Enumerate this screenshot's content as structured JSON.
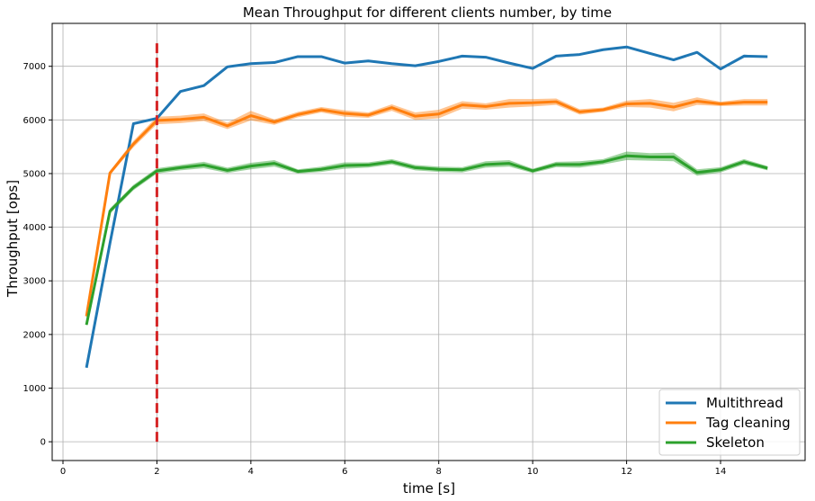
{
  "chart_data": {
    "type": "line",
    "title": "Mean Throughput for different clients number, by time",
    "xlabel": "time [s]",
    "ylabel": "Throughput [ops]",
    "xlim": [
      -0.23,
      15.8
    ],
    "ylim": [
      -350,
      7800
    ],
    "xticks": [
      0,
      2,
      4,
      6,
      8,
      10,
      12,
      14
    ],
    "yticks": [
      0,
      1000,
      2000,
      3000,
      4000,
      5000,
      6000,
      7000
    ],
    "grid": true,
    "legend_position": "bottom-right",
    "vline": {
      "x": 2,
      "color": "#d62728",
      "style": "dashed"
    },
    "x": [
      0.5,
      1.0,
      1.5,
      2.0,
      2.5,
      3.0,
      3.5,
      4.0,
      4.5,
      5.0,
      5.5,
      6.0,
      6.5,
      7.0,
      7.5,
      8.0,
      8.5,
      9.0,
      9.5,
      10.0,
      10.5,
      11.0,
      11.5,
      12.0,
      12.5,
      13.0,
      13.5,
      14.0,
      14.5,
      15.0
    ],
    "series": [
      {
        "name": "Multithread",
        "color": "#1f77b4",
        "values": [
          1380,
          3700,
          5930,
          6030,
          6530,
          6640,
          6990,
          7050,
          7070,
          7180,
          7180,
          7060,
          7100,
          7050,
          7010,
          7090,
          7190,
          7170,
          7060,
          6960,
          7190,
          7220,
          7310,
          7360,
          7240,
          7120,
          7260,
          6950,
          7190,
          7180
        ],
        "band": [
          0,
          0,
          0,
          0,
          0,
          0,
          0,
          0,
          0,
          0,
          0,
          0,
          0,
          0,
          0,
          0,
          0,
          0,
          0,
          0,
          0,
          0,
          0,
          0,
          0,
          0,
          0,
          0,
          30,
          0
        ]
      },
      {
        "name": "Tag cleaning",
        "color": "#ff7f0e",
        "values": [
          2340,
          5010,
          5550,
          5990,
          6010,
          6050,
          5890,
          6080,
          5960,
          6100,
          6190,
          6120,
          6090,
          6230,
          6070,
          6110,
          6280,
          6250,
          6310,
          6320,
          6340,
          6150,
          6190,
          6300,
          6310,
          6240,
          6350,
          6300,
          6330,
          6330
        ],
        "band": [
          40,
          40,
          60,
          70,
          70,
          70,
          60,
          90,
          50,
          50,
          50,
          60,
          50,
          60,
          70,
          80,
          70,
          60,
          80,
          70,
          60,
          50,
          40,
          60,
          80,
          80,
          70,
          40,
          60,
          60
        ]
      },
      {
        "name": "Skeleton",
        "color": "#2ca02c",
        "values": [
          2180,
          4300,
          4740,
          5050,
          5110,
          5160,
          5060,
          5140,
          5190,
          5040,
          5080,
          5150,
          5160,
          5220,
          5110,
          5080,
          5070,
          5170,
          5190,
          5050,
          5170,
          5170,
          5220,
          5330,
          5310,
          5310,
          5020,
          5070,
          5220,
          5100
        ],
        "band": [
          30,
          50,
          50,
          50,
          50,
          60,
          50,
          60,
          60,
          40,
          50,
          60,
          50,
          50,
          50,
          50,
          50,
          60,
          60,
          40,
          50,
          60,
          50,
          80,
          70,
          80,
          60,
          50,
          50,
          40
        ]
      }
    ]
  }
}
